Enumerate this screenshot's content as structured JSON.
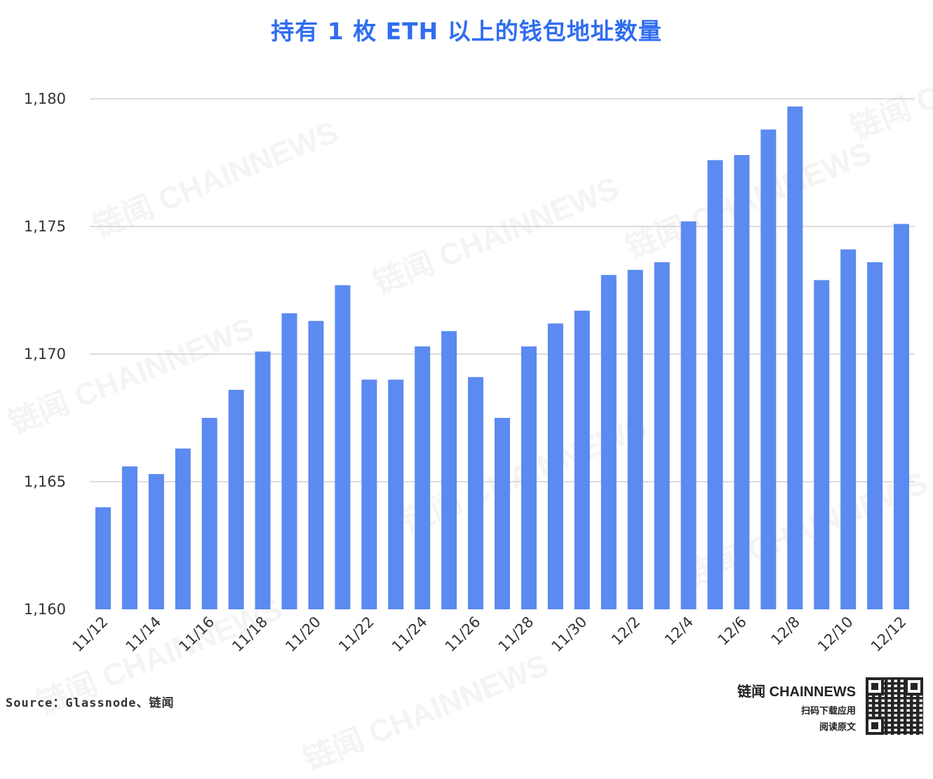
{
  "chart_data": {
    "type": "bar",
    "title": "持有 1 枚 ETH 以上的钱包地址数量",
    "xlabel": "",
    "ylabel": "",
    "ylim": [
      1160,
      1180
    ],
    "yticks": [
      "1,160",
      "1,165",
      "1,170",
      "1,175",
      "1,180"
    ],
    "ytick_values": [
      1160,
      1165,
      1170,
      1175,
      1180
    ],
    "grid": true,
    "bar_color": "#5b8af0",
    "categories": [
      "11/12",
      "11/13",
      "11/14",
      "11/15",
      "11/16",
      "11/17",
      "11/18",
      "11/19",
      "11/20",
      "11/21",
      "11/22",
      "11/23",
      "11/24",
      "11/25",
      "11/26",
      "11/27",
      "11/28",
      "11/29",
      "11/30",
      "12/1",
      "12/2",
      "12/3",
      "12/4",
      "12/5",
      "12/6",
      "12/7",
      "12/8",
      "12/9",
      "12/10",
      "12/11",
      "12/12"
    ],
    "x_tick_labels": [
      "11/12",
      "11/14",
      "11/16",
      "11/18",
      "11/20",
      "11/22",
      "11/24",
      "11/26",
      "11/28",
      "11/30",
      "12/2",
      "12/4",
      "12/6",
      "12/8",
      "12/10",
      "12/12"
    ],
    "values": [
      1164.0,
      1165.6,
      1165.3,
      1166.3,
      1167.5,
      1168.6,
      1170.1,
      1171.6,
      1171.3,
      1172.7,
      1169.0,
      1169.0,
      1170.3,
      1170.9,
      1169.1,
      1167.5,
      1170.3,
      1171.2,
      1171.7,
      1173.1,
      1173.3,
      1173.6,
      1175.2,
      1177.6,
      1177.8,
      1178.8,
      1179.7,
      1172.9,
      1174.1,
      1173.6,
      1175.1
    ]
  },
  "footer": {
    "source": "Source：Glassnode、链闻",
    "brand": "链闻 CHAINNEWS",
    "cta_line1": "扫码下载应用",
    "cta_line2": "阅读原文"
  },
  "watermark": "链闻 CHAINNEWS"
}
